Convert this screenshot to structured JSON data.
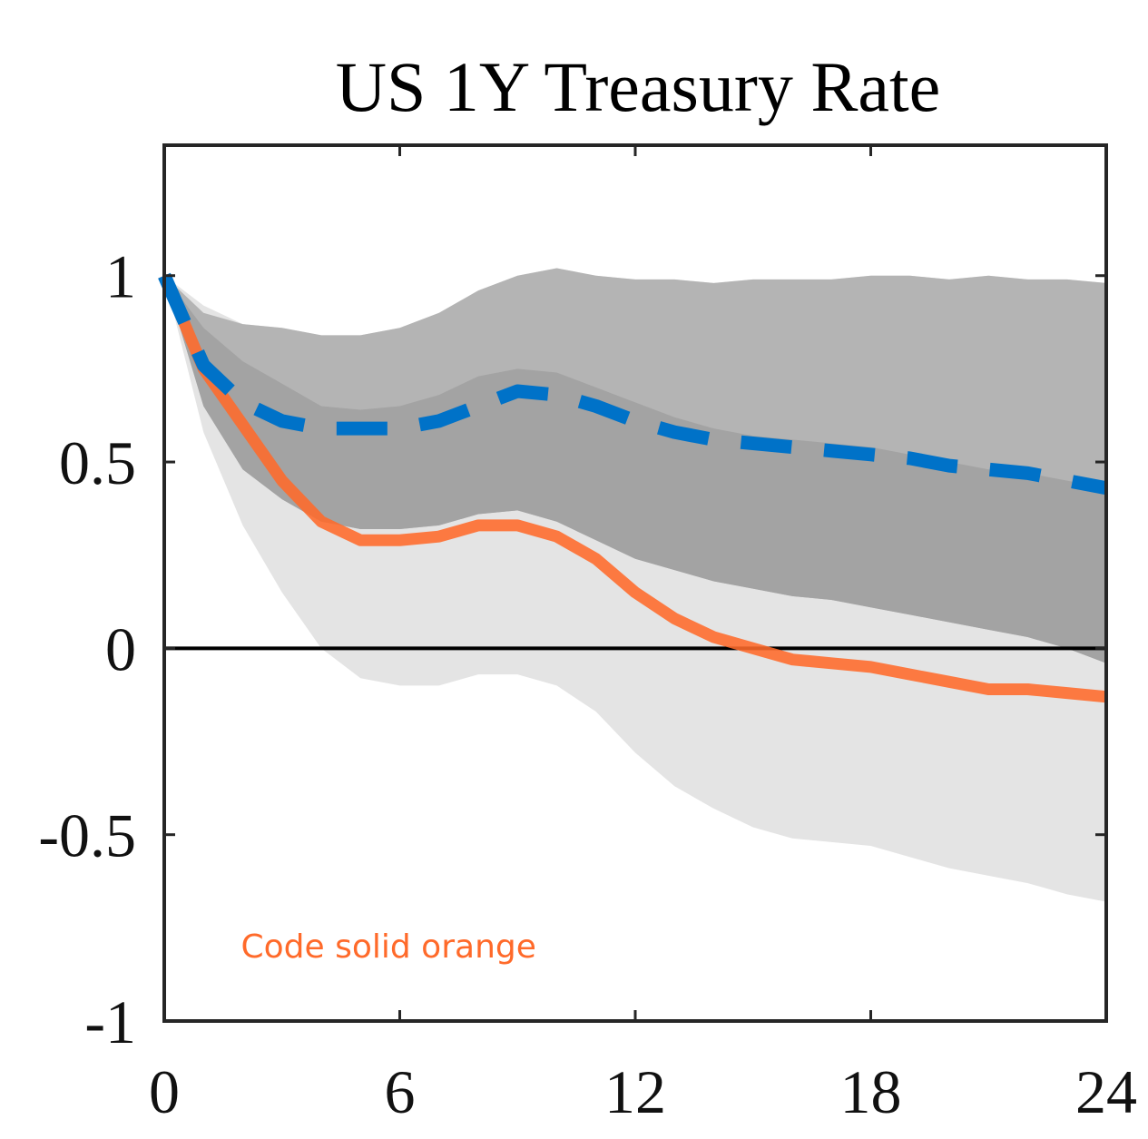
{
  "chart_data": {
    "type": "line",
    "title": "US 1Y Treasury Rate",
    "xlabel": "",
    "ylabel": "",
    "xlim": [
      0,
      24
    ],
    "ylim": [
      -1,
      1.35
    ],
    "xticks": [
      0,
      6,
      12,
      18,
      24
    ],
    "yticks": [
      -1,
      -0.5,
      0,
      0.5,
      1
    ],
    "xtick_labels": [
      "0",
      "6",
      "12",
      "18",
      "24"
    ],
    "ytick_labels": [
      "-1",
      "-0.5",
      "0",
      "0.5",
      "1"
    ],
    "grid": false,
    "zero_line": true,
    "x": [
      0,
      1,
      2,
      3,
      4,
      5,
      6,
      7,
      8,
      9,
      10,
      11,
      12,
      13,
      14,
      15,
      16,
      17,
      18,
      19,
      20,
      21,
      22,
      23,
      24
    ],
    "series": [
      {
        "style": "solid",
        "color": "#FF6A2A",
        "values": [
          1.0,
          0.75,
          0.6,
          0.45,
          0.34,
          0.29,
          0.29,
          0.3,
          0.33,
          0.33,
          0.3,
          0.24,
          0.15,
          0.08,
          0.03,
          0.0,
          -0.03,
          -0.04,
          -0.05,
          -0.07,
          -0.09,
          -0.11,
          -0.11,
          -0.12,
          -0.13
        ]
      },
      {
        "style": "dashed",
        "color": "#0072C8",
        "values": [
          1.0,
          0.76,
          0.66,
          0.61,
          0.59,
          0.59,
          0.59,
          0.61,
          0.65,
          0.69,
          0.68,
          0.65,
          0.61,
          0.58,
          0.56,
          0.55,
          0.54,
          0.53,
          0.52,
          0.51,
          0.49,
          0.48,
          0.47,
          0.45,
          0.43
        ]
      }
    ],
    "bands": [
      {
        "color": "#E4E4E4",
        "upper": [
          1.0,
          0.92,
          0.87,
          0.86,
          0.84,
          0.84,
          0.86,
          0.9,
          0.96,
          1.0,
          1.02,
          1.0,
          0.99,
          0.99,
          0.98,
          0.99,
          0.99,
          0.99,
          1.0,
          1.0,
          0.99,
          1.0,
          0.99,
          0.99,
          0.98
        ],
        "lower": [
          1.0,
          0.58,
          0.33,
          0.15,
          0.0,
          -0.08,
          -0.1,
          -0.1,
          -0.07,
          -0.07,
          -0.1,
          -0.17,
          -0.28,
          -0.37,
          -0.43,
          -0.48,
          -0.51,
          -0.52,
          -0.53,
          -0.56,
          -0.59,
          -0.61,
          -0.63,
          -0.66,
          -0.68
        ]
      },
      {
        "color": "#B4B4B4",
        "upper": [
          1.0,
          0.9,
          0.87,
          0.86,
          0.84,
          0.84,
          0.86,
          0.9,
          0.96,
          1.0,
          1.02,
          1.0,
          0.99,
          0.99,
          0.98,
          0.99,
          0.99,
          0.99,
          1.0,
          1.0,
          0.99,
          1.0,
          0.99,
          0.99,
          0.98
        ],
        "lower": [
          1.0,
          0.65,
          0.48,
          0.4,
          0.34,
          0.32,
          0.32,
          0.33,
          0.36,
          0.37,
          0.34,
          0.29,
          0.24,
          0.21,
          0.18,
          0.16,
          0.14,
          0.13,
          0.11,
          0.09,
          0.07,
          0.05,
          0.03,
          0.0,
          -0.04
        ]
      },
      {
        "color": "#A3A3A3",
        "upper": [
          1.0,
          0.86,
          0.77,
          0.71,
          0.65,
          0.64,
          0.65,
          0.68,
          0.73,
          0.75,
          0.74,
          0.7,
          0.66,
          0.62,
          0.59,
          0.57,
          0.56,
          0.55,
          0.54,
          0.52,
          0.5,
          0.48,
          0.47,
          0.45,
          0.43
        ],
        "lower": [
          1.0,
          0.65,
          0.48,
          0.4,
          0.34,
          0.32,
          0.32,
          0.33,
          0.36,
          0.37,
          0.34,
          0.29,
          0.24,
          0.21,
          0.18,
          0.16,
          0.14,
          0.13,
          0.11,
          0.09,
          0.07,
          0.05,
          0.03,
          0.0,
          -0.04
        ]
      }
    ],
    "annotations": [
      {
        "text": "Code solid orange",
        "color": "#FF6A2A",
        "x": 2,
        "y": -0.8
      }
    ]
  }
}
